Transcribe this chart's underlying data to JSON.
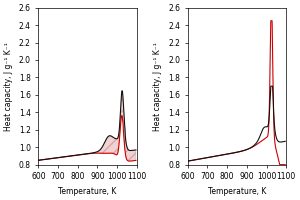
{
  "xlim": [
    600,
    1100
  ],
  "ylim": [
    0.8,
    2.6
  ],
  "yticks": [
    0.8,
    1.0,
    1.2,
    1.4,
    1.6,
    1.8,
    2.0,
    2.2,
    2.4,
    2.6
  ],
  "xticks": [
    600,
    700,
    800,
    900,
    1000,
    1100
  ],
  "xlabel": "Temperature, K",
  "ylabel": "Heat capacity, J g⁻¹ K⁻¹",
  "line_red": "#cc0000",
  "line_black": "#111111",
  "hatch_color": "#cc8888"
}
